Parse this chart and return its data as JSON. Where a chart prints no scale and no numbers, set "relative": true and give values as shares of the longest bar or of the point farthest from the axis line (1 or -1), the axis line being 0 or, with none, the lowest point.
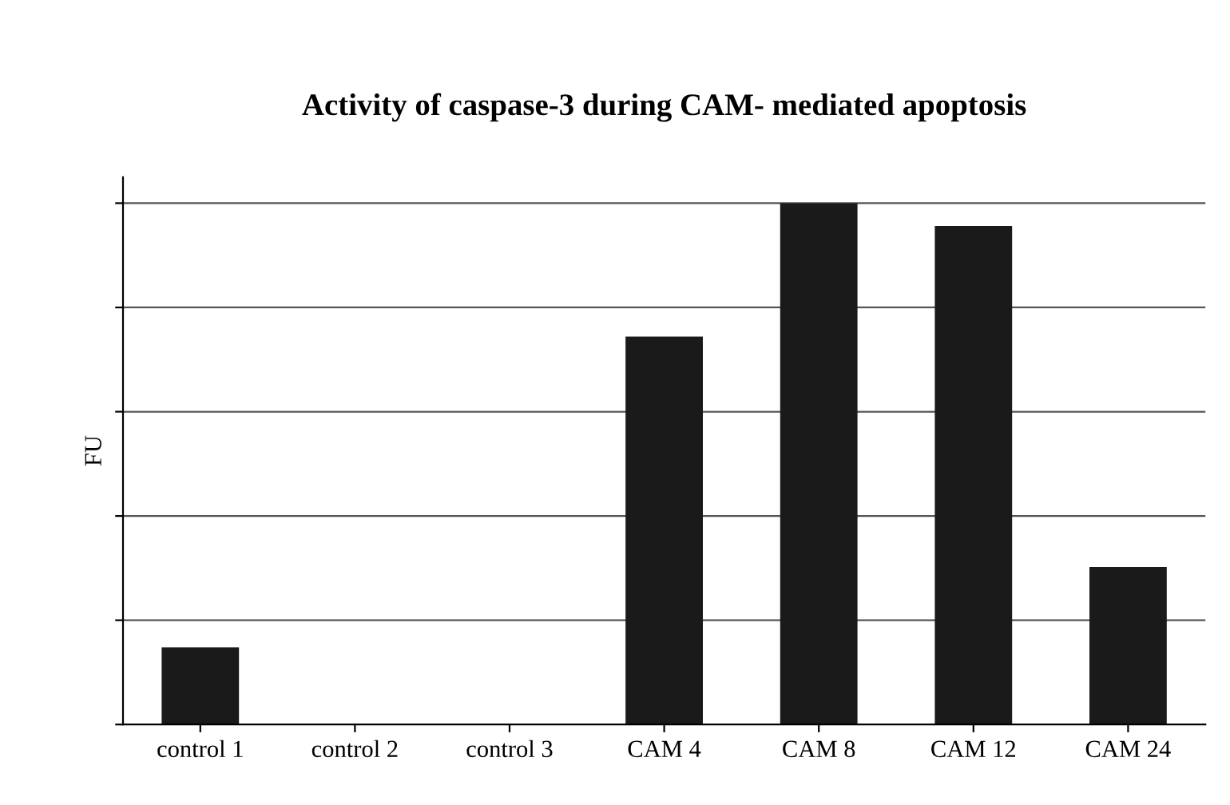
{
  "chart_data": {
    "type": "bar",
    "title": "Activity of caspase-3 during CAM- mediated apoptosis",
    "ylabel": "FU",
    "categories": [
      "control 1",
      "control 2",
      "control 3",
      "CAM 4",
      "CAM 8",
      "CAM 12",
      "CAM 24"
    ],
    "values": [
      0.148,
      0,
      0,
      0.744,
      1,
      0.956,
      0.302
    ],
    "color": "#1a1a1a",
    "relative": true,
    "grid": "y"
  }
}
